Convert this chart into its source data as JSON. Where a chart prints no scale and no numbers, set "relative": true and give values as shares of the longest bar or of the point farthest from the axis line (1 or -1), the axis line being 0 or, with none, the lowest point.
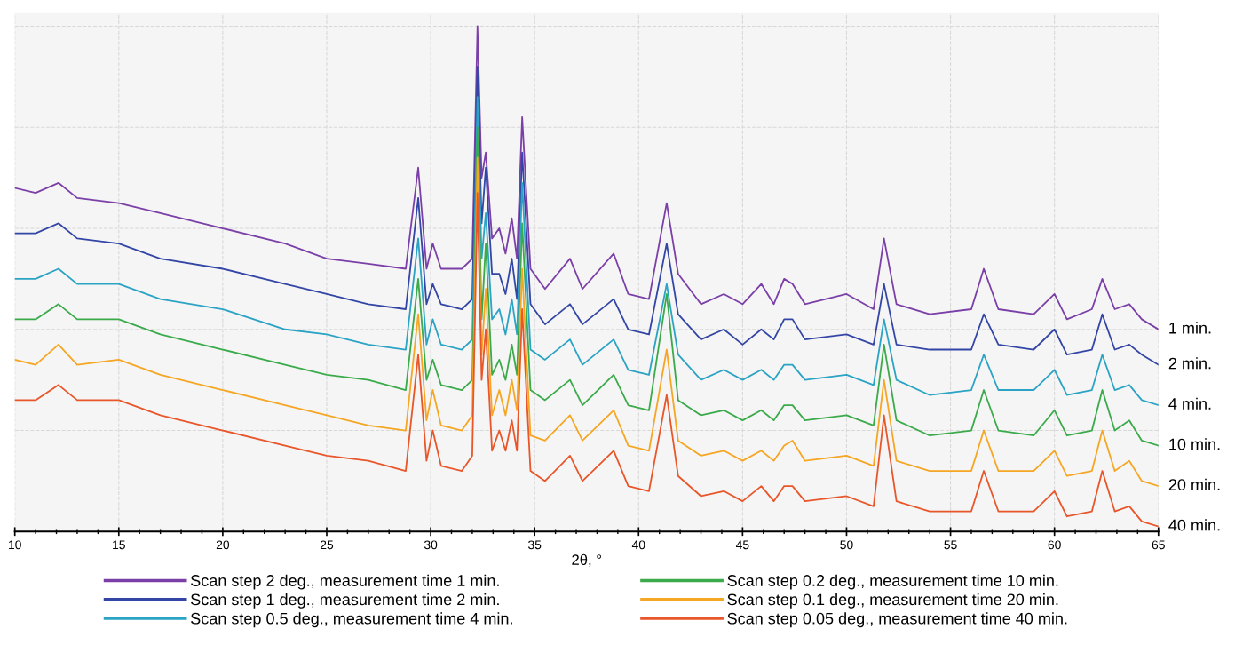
{
  "chart_data": {
    "type": "line",
    "relative": true,
    "xlabel": "2θ, °",
    "x": [
      10,
      11,
      12.1,
      13,
      15,
      17,
      20,
      23,
      25,
      27,
      28.8,
      29.4,
      29.8,
      30.1,
      30.5,
      31.5,
      32.0,
      32.25,
      32.45,
      32.65,
      32.95,
      33.3,
      33.6,
      33.9,
      34.15,
      34.4,
      34.8,
      35.5,
      36.7,
      37.3,
      38.8,
      39.5,
      40.5,
      41.35,
      41.9,
      43,
      44.1,
      45,
      45.9,
      46.5,
      47.0,
      47.4,
      48,
      50,
      51.3,
      51.8,
      52.4,
      54,
      56,
      56.6,
      57.3,
      59,
      60,
      60.6,
      61.8,
      62.3,
      62.9,
      63.6,
      64.2,
      65
    ],
    "xlim": [
      10,
      65
    ],
    "xticks": [
      10,
      15,
      20,
      25,
      30,
      35,
      40,
      45,
      50,
      55,
      60,
      65
    ],
    "grid": true,
    "legend": "bottom",
    "marker": "none",
    "line_style": "solid",
    "series": [
      {
        "name": "Scan step 2 deg., measurement time 1 min.",
        "color": "#7b3fa8",
        "values": [
          0.68,
          0.67,
          0.69,
          0.66,
          0.65,
          0.63,
          0.6,
          0.57,
          0.54,
          0.53,
          0.52,
          0.72,
          0.52,
          0.57,
          0.52,
          0.52,
          0.54,
          1.0,
          0.7,
          0.75,
          0.58,
          0.6,
          0.55,
          0.62,
          0.54,
          0.82,
          0.52,
          0.48,
          0.54,
          0.48,
          0.55,
          0.47,
          0.46,
          0.65,
          0.51,
          0.45,
          0.47,
          0.45,
          0.49,
          0.45,
          0.5,
          0.49,
          0.45,
          0.47,
          0.44,
          0.58,
          0.45,
          0.43,
          0.44,
          0.52,
          0.44,
          0.43,
          0.47,
          0.42,
          0.44,
          0.5,
          0.44,
          0.45,
          0.42,
          0.4
        ]
      },
      {
        "name": "Scan step 1 deg., measurement time 2 min.",
        "color": "#3346a6",
        "values": [
          0.59,
          0.59,
          0.61,
          0.58,
          0.57,
          0.54,
          0.52,
          0.49,
          0.47,
          0.45,
          0.44,
          0.66,
          0.45,
          0.49,
          0.45,
          0.44,
          0.46,
          0.92,
          0.61,
          0.72,
          0.51,
          0.51,
          0.47,
          0.54,
          0.46,
          0.75,
          0.45,
          0.41,
          0.45,
          0.41,
          0.46,
          0.4,
          0.39,
          0.57,
          0.43,
          0.38,
          0.4,
          0.37,
          0.4,
          0.38,
          0.42,
          0.42,
          0.38,
          0.39,
          0.37,
          0.49,
          0.37,
          0.36,
          0.36,
          0.43,
          0.37,
          0.36,
          0.4,
          0.35,
          0.36,
          0.43,
          0.36,
          0.37,
          0.35,
          0.33
        ]
      },
      {
        "name": "Scan step 0.5 deg., measurement time 4 min.",
        "color": "#2ba3c4",
        "values": [
          0.5,
          0.5,
          0.52,
          0.49,
          0.49,
          0.46,
          0.44,
          0.4,
          0.39,
          0.37,
          0.36,
          0.58,
          0.37,
          0.42,
          0.37,
          0.36,
          0.38,
          0.86,
          0.54,
          0.63,
          0.42,
          0.44,
          0.39,
          0.46,
          0.39,
          0.69,
          0.36,
          0.34,
          0.38,
          0.33,
          0.38,
          0.32,
          0.31,
          0.49,
          0.35,
          0.3,
          0.32,
          0.3,
          0.32,
          0.3,
          0.33,
          0.33,
          0.3,
          0.31,
          0.29,
          0.42,
          0.3,
          0.27,
          0.28,
          0.35,
          0.28,
          0.28,
          0.32,
          0.27,
          0.28,
          0.35,
          0.28,
          0.29,
          0.26,
          0.25
        ]
      },
      {
        "name": "Scan step 0.2 deg., measurement time 10 min.",
        "color": "#3aaa4a",
        "values": [
          0.42,
          0.42,
          0.45,
          0.42,
          0.42,
          0.39,
          0.36,
          0.33,
          0.31,
          0.3,
          0.28,
          0.5,
          0.3,
          0.34,
          0.29,
          0.28,
          0.3,
          0.8,
          0.42,
          0.57,
          0.31,
          0.34,
          0.3,
          0.37,
          0.31,
          0.61,
          0.28,
          0.26,
          0.3,
          0.25,
          0.31,
          0.25,
          0.24,
          0.47,
          0.26,
          0.23,
          0.24,
          0.22,
          0.24,
          0.22,
          0.25,
          0.25,
          0.22,
          0.23,
          0.21,
          0.37,
          0.22,
          0.19,
          0.2,
          0.28,
          0.2,
          0.19,
          0.24,
          0.19,
          0.2,
          0.28,
          0.2,
          0.22,
          0.18,
          0.17
        ]
      },
      {
        "name": "Scan step 0.1 deg., measurement time 20 min.",
        "color": "#f5a623",
        "values": [
          0.34,
          0.33,
          0.37,
          0.33,
          0.34,
          0.31,
          0.28,
          0.25,
          0.23,
          0.21,
          0.2,
          0.43,
          0.22,
          0.28,
          0.21,
          0.2,
          0.23,
          0.74,
          0.35,
          0.48,
          0.23,
          0.28,
          0.23,
          0.3,
          0.24,
          0.52,
          0.19,
          0.18,
          0.23,
          0.18,
          0.24,
          0.17,
          0.16,
          0.36,
          0.18,
          0.15,
          0.16,
          0.14,
          0.16,
          0.14,
          0.17,
          0.18,
          0.14,
          0.15,
          0.13,
          0.3,
          0.14,
          0.12,
          0.12,
          0.2,
          0.12,
          0.12,
          0.16,
          0.11,
          0.12,
          0.2,
          0.12,
          0.14,
          0.1,
          0.09
        ]
      },
      {
        "name": "Scan step 0.05 deg., measurement time 40 min.",
        "color": "#e8562a",
        "values": [
          0.26,
          0.26,
          0.29,
          0.26,
          0.26,
          0.23,
          0.2,
          0.17,
          0.15,
          0.14,
          0.12,
          0.35,
          0.14,
          0.2,
          0.13,
          0.12,
          0.15,
          0.67,
          0.3,
          0.4,
          0.16,
          0.2,
          0.16,
          0.22,
          0.16,
          0.44,
          0.12,
          0.1,
          0.15,
          0.1,
          0.16,
          0.09,
          0.08,
          0.27,
          0.11,
          0.07,
          0.08,
          0.06,
          0.09,
          0.06,
          0.09,
          0.09,
          0.06,
          0.07,
          0.05,
          0.23,
          0.06,
          0.04,
          0.04,
          0.12,
          0.04,
          0.04,
          0.08,
          0.03,
          0.04,
          0.12,
          0.04,
          0.05,
          0.02,
          0.01
        ]
      }
    ],
    "annotations": [
      "1 min.",
      "2 min.",
      "4 min.",
      "10 min.",
      "20 min.",
      "40 min."
    ]
  }
}
